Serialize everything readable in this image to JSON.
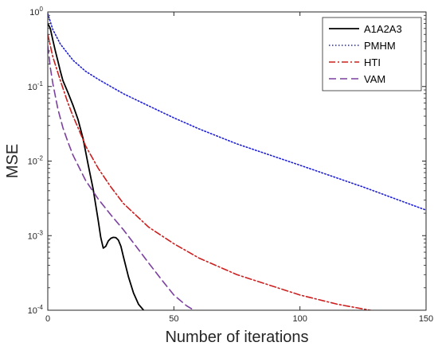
{
  "chart_data": {
    "type": "line",
    "title": "",
    "xlabel": "Number of iterations",
    "ylabel": "MSE",
    "xlim": [
      0,
      150
    ],
    "ylim": [
      0.0001,
      1
    ],
    "yscale": "log",
    "grid": false,
    "legend_position": "top-right",
    "xticks": [
      0,
      50,
      100,
      150
    ],
    "xtick_labels": [
      "0",
      "50",
      "100",
      "150"
    ],
    "yticks": [
      0.0001,
      0.001,
      0.01,
      0.1,
      1
    ],
    "ytick_labels": [
      {
        "base": "10",
        "exp": "-4"
      },
      {
        "base": "10",
        "exp": "-3"
      },
      {
        "base": "10",
        "exp": "-2"
      },
      {
        "base": "10",
        "exp": "-1"
      },
      {
        "base": "10",
        "exp": "0"
      }
    ],
    "series": [
      {
        "name": "A1A2A3",
        "color": "#000000",
        "dash": "solid",
        "points": [
          [
            0,
            0.7
          ],
          [
            1,
            0.6
          ],
          [
            2,
            0.42
          ],
          [
            3,
            0.3
          ],
          [
            4,
            0.22
          ],
          [
            5,
            0.16
          ],
          [
            6,
            0.12
          ],
          [
            8,
            0.083
          ],
          [
            10,
            0.056
          ],
          [
            12,
            0.036
          ],
          [
            14,
            0.02
          ],
          [
            16,
            0.009
          ],
          [
            18,
            0.0042
          ],
          [
            20,
            0.0016
          ],
          [
            21,
            0.00095
          ],
          [
            22,
            0.00068
          ],
          [
            23,
            0.00072
          ],
          [
            24,
            0.00085
          ],
          [
            25,
            0.00092
          ],
          [
            26,
            0.00095
          ],
          [
            27,
            0.00094
          ],
          [
            28,
            0.00087
          ],
          [
            29,
            0.00072
          ],
          [
            30,
            0.00052
          ],
          [
            32,
            0.00028
          ],
          [
            34,
            0.00017
          ],
          [
            36,
            0.00012
          ],
          [
            38,
            0.0001
          ]
        ]
      },
      {
        "name": "PMHM",
        "color": "#1f1fd6",
        "dash": "dotted",
        "points": [
          [
            0,
            0.95
          ],
          [
            2,
            0.58
          ],
          [
            5,
            0.37
          ],
          [
            10,
            0.225
          ],
          [
            15,
            0.16
          ],
          [
            20,
            0.125
          ],
          [
            30,
            0.08
          ],
          [
            40,
            0.055
          ],
          [
            50,
            0.038
          ],
          [
            60,
            0.027
          ],
          [
            75,
            0.017
          ],
          [
            100,
            0.0088
          ],
          [
            125,
            0.0045
          ],
          [
            150,
            0.0022
          ]
        ]
      },
      {
        "name": "HTI",
        "color": "#cc2020",
        "dash": "dashdot",
        "points": [
          [
            0,
            0.5
          ],
          [
            2,
            0.25
          ],
          [
            5,
            0.12
          ],
          [
            8,
            0.06
          ],
          [
            10,
            0.04
          ],
          [
            12,
            0.028
          ],
          [
            15,
            0.016
          ],
          [
            20,
            0.008
          ],
          [
            25,
            0.0045
          ],
          [
            30,
            0.0027
          ],
          [
            40,
            0.0013
          ],
          [
            50,
            0.00078
          ],
          [
            60,
            0.0005
          ],
          [
            75,
            0.0003
          ],
          [
            100,
            0.00016
          ],
          [
            115,
            0.00012
          ],
          [
            130,
            9.7e-05
          ]
        ]
      },
      {
        "name": "VAM",
        "color": "#7b3fa0",
        "dash": "dashed",
        "points": [
          [
            0,
            0.35
          ],
          [
            1,
            0.18
          ],
          [
            2,
            0.11
          ],
          [
            4,
            0.05
          ],
          [
            6,
            0.028
          ],
          [
            8,
            0.018
          ],
          [
            10,
            0.012
          ],
          [
            15,
            0.0055
          ],
          [
            20,
            0.0031
          ],
          [
            25,
            0.0019
          ],
          [
            30,
            0.0012
          ],
          [
            35,
            0.00072
          ],
          [
            40,
            0.00043
          ],
          [
            45,
            0.00026
          ],
          [
            50,
            0.00016
          ],
          [
            55,
            0.000115
          ],
          [
            58,
            0.0001
          ]
        ]
      }
    ]
  }
}
